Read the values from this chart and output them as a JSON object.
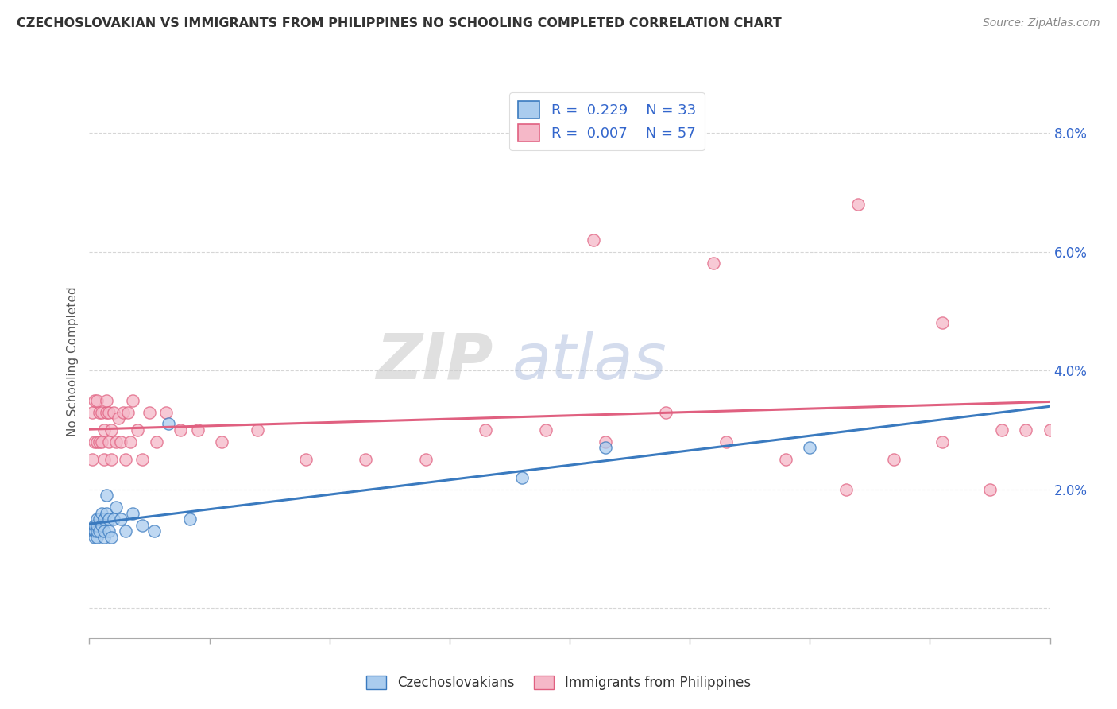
{
  "title": "CZECHOSLOVAKIAN VS IMMIGRANTS FROM PHILIPPINES NO SCHOOLING COMPLETED CORRELATION CHART",
  "source": "Source: ZipAtlas.com",
  "ylabel": "No Schooling Completed",
  "xmin": 0.0,
  "xmax": 0.4,
  "ymin": -0.005,
  "ymax": 0.088,
  "yticks": [
    0.0,
    0.02,
    0.04,
    0.06,
    0.08
  ],
  "ytick_labels": [
    "",
    "2.0%",
    "4.0%",
    "6.0%",
    "8.0%"
  ],
  "color_czech": "#aaccee",
  "color_phil": "#f5b8c8",
  "line_color_czech": "#3a7abf",
  "line_color_phil": "#e06080",
  "background_color": "#ffffff",
  "watermark_zip": "ZIP",
  "watermark_atlas": "atlas",
  "czech_x": [
    0.001,
    0.002,
    0.002,
    0.002,
    0.002,
    0.003,
    0.003,
    0.003,
    0.003,
    0.004,
    0.004,
    0.005,
    0.005,
    0.006,
    0.006,
    0.006,
    0.007,
    0.007,
    0.008,
    0.008,
    0.009,
    0.01,
    0.011,
    0.013,
    0.015,
    0.018,
    0.022,
    0.027,
    0.033,
    0.042,
    0.18,
    0.215,
    0.3
  ],
  "czech_y": [
    0.013,
    0.012,
    0.013,
    0.013,
    0.014,
    0.012,
    0.013,
    0.014,
    0.015,
    0.013,
    0.015,
    0.014,
    0.016,
    0.012,
    0.013,
    0.015,
    0.016,
    0.019,
    0.013,
    0.015,
    0.012,
    0.015,
    0.017,
    0.015,
    0.013,
    0.016,
    0.014,
    0.013,
    0.031,
    0.015,
    0.022,
    0.027,
    0.027
  ],
  "phil_x": [
    0.001,
    0.001,
    0.002,
    0.002,
    0.003,
    0.003,
    0.004,
    0.004,
    0.005,
    0.005,
    0.006,
    0.006,
    0.007,
    0.007,
    0.008,
    0.008,
    0.009,
    0.009,
    0.01,
    0.011,
    0.012,
    0.013,
    0.014,
    0.015,
    0.016,
    0.017,
    0.018,
    0.02,
    0.022,
    0.025,
    0.028,
    0.032,
    0.038,
    0.045,
    0.055,
    0.07,
    0.09,
    0.115,
    0.14,
    0.165,
    0.19,
    0.215,
    0.24,
    0.265,
    0.29,
    0.315,
    0.335,
    0.355,
    0.375,
    0.39,
    0.21,
    0.26,
    0.32,
    0.355,
    0.38,
    0.4
  ],
  "phil_y": [
    0.025,
    0.033,
    0.028,
    0.035,
    0.028,
    0.035,
    0.028,
    0.033,
    0.028,
    0.033,
    0.025,
    0.03,
    0.033,
    0.035,
    0.028,
    0.033,
    0.025,
    0.03,
    0.033,
    0.028,
    0.032,
    0.028,
    0.033,
    0.025,
    0.033,
    0.028,
    0.035,
    0.03,
    0.025,
    0.033,
    0.028,
    0.033,
    0.03,
    0.03,
    0.028,
    0.03,
    0.025,
    0.025,
    0.025,
    0.03,
    0.03,
    0.028,
    0.033,
    0.028,
    0.025,
    0.02,
    0.025,
    0.028,
    0.02,
    0.03,
    0.062,
    0.058,
    0.068,
    0.048,
    0.03,
    0.03
  ]
}
